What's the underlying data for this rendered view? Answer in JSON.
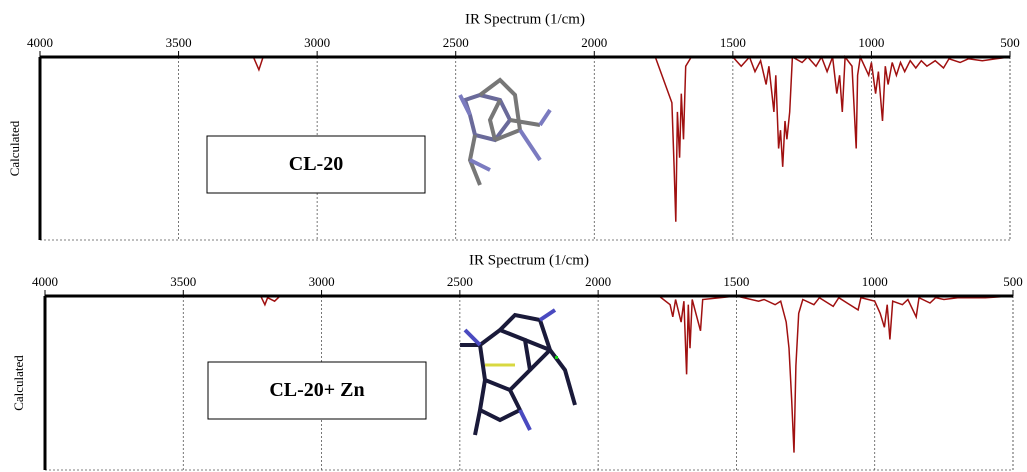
{
  "chart_data": [
    {
      "type": "line",
      "title": "IR Spectrum (1/cm)",
      "ylabel": "Calculated",
      "annotation": "CL-20",
      "xlim": [
        4000,
        500
      ],
      "xticks": [
        4000,
        3500,
        3000,
        2500,
        2000,
        1500,
        1000,
        500
      ],
      "ylim": [
        1,
        0
      ],
      "grid": true,
      "x": [
        4000,
        3230,
        3210,
        3195,
        1780,
        1720,
        1712,
        1706,
        1700,
        1692,
        1686,
        1678,
        1670,
        1650,
        1500,
        1470,
        1440,
        1420,
        1400,
        1380,
        1370,
        1352,
        1345,
        1335,
        1328,
        1320,
        1312,
        1305,
        1295,
        1285,
        1250,
        1230,
        1200,
        1180,
        1160,
        1140,
        1125,
        1115,
        1105,
        1095,
        1070,
        1055,
        1050,
        1040,
        1010,
        1000,
        985,
        975,
        960,
        950,
        940,
        925,
        910,
        895,
        880,
        860,
        840,
        820,
        800,
        770,
        740,
        720,
        680,
        650,
        600,
        550,
        500
      ],
      "color": "#a01010",
      "values": [
        0,
        0,
        0.07,
        0,
        0,
        0.25,
        0.6,
        0.9,
        0.3,
        0.55,
        0.2,
        0.45,
        0.05,
        0,
        0,
        0.05,
        0,
        0.08,
        0.02,
        0.15,
        0.05,
        0.3,
        0.1,
        0.5,
        0.4,
        0.6,
        0.35,
        0.45,
        0.3,
        0,
        0.03,
        0,
        0.05,
        0,
        0.08,
        0,
        0.2,
        0.1,
        0.3,
        0,
        0.05,
        0.5,
        0.1,
        0,
        0.1,
        0.03,
        0.2,
        0.08,
        0.35,
        0.05,
        0.15,
        0.03,
        0.1,
        0.03,
        0.08,
        0.02,
        0.06,
        0.02,
        0.05,
        0.02,
        0.06,
        0.01,
        0.03,
        0.01,
        0.02,
        0.01,
        0
      ]
    },
    {
      "type": "line",
      "title": "IR Spectrum (1/cm)",
      "ylabel": "Calculated",
      "annotation": "CL-20+ Zn",
      "xlim": [
        4000,
        500
      ],
      "xticks": [
        4000,
        3500,
        3000,
        2500,
        2000,
        1500,
        1000,
        500
      ],
      "ylim": [
        1,
        0
      ],
      "grid": true,
      "x": [
        4000,
        3220,
        3205,
        3195,
        3170,
        3150,
        1780,
        1740,
        1730,
        1720,
        1700,
        1690,
        1680,
        1674,
        1668,
        1660,
        1630,
        1622,
        1500,
        1420,
        1400,
        1360,
        1340,
        1320,
        1310,
        1300,
        1292,
        1285,
        1275,
        1260,
        1220,
        1200,
        1150,
        1130,
        1100,
        1060,
        1050,
        1000,
        980,
        965,
        955,
        945,
        935,
        900,
        880,
        850,
        840,
        800,
        780,
        750,
        700,
        600,
        500
      ],
      "color": "#a01010",
      "values": [
        0,
        0,
        0.05,
        0.01,
        0.03,
        0,
        0,
        0.05,
        0.12,
        0.02,
        0.15,
        0.03,
        0.45,
        0.05,
        0.3,
        0.02,
        0.2,
        0.02,
        0,
        0.03,
        0.02,
        0.05,
        0.03,
        0.15,
        0.3,
        0.6,
        0.9,
        0.4,
        0.1,
        0.02,
        0.05,
        0.01,
        0.06,
        0.01,
        0.04,
        0.08,
        0.01,
        0.03,
        0.1,
        0.18,
        0.05,
        0.25,
        0.03,
        0.05,
        0.02,
        0.12,
        0.01,
        0.04,
        0.01,
        0.02,
        0.01,
        0.01,
        0
      ]
    }
  ]
}
